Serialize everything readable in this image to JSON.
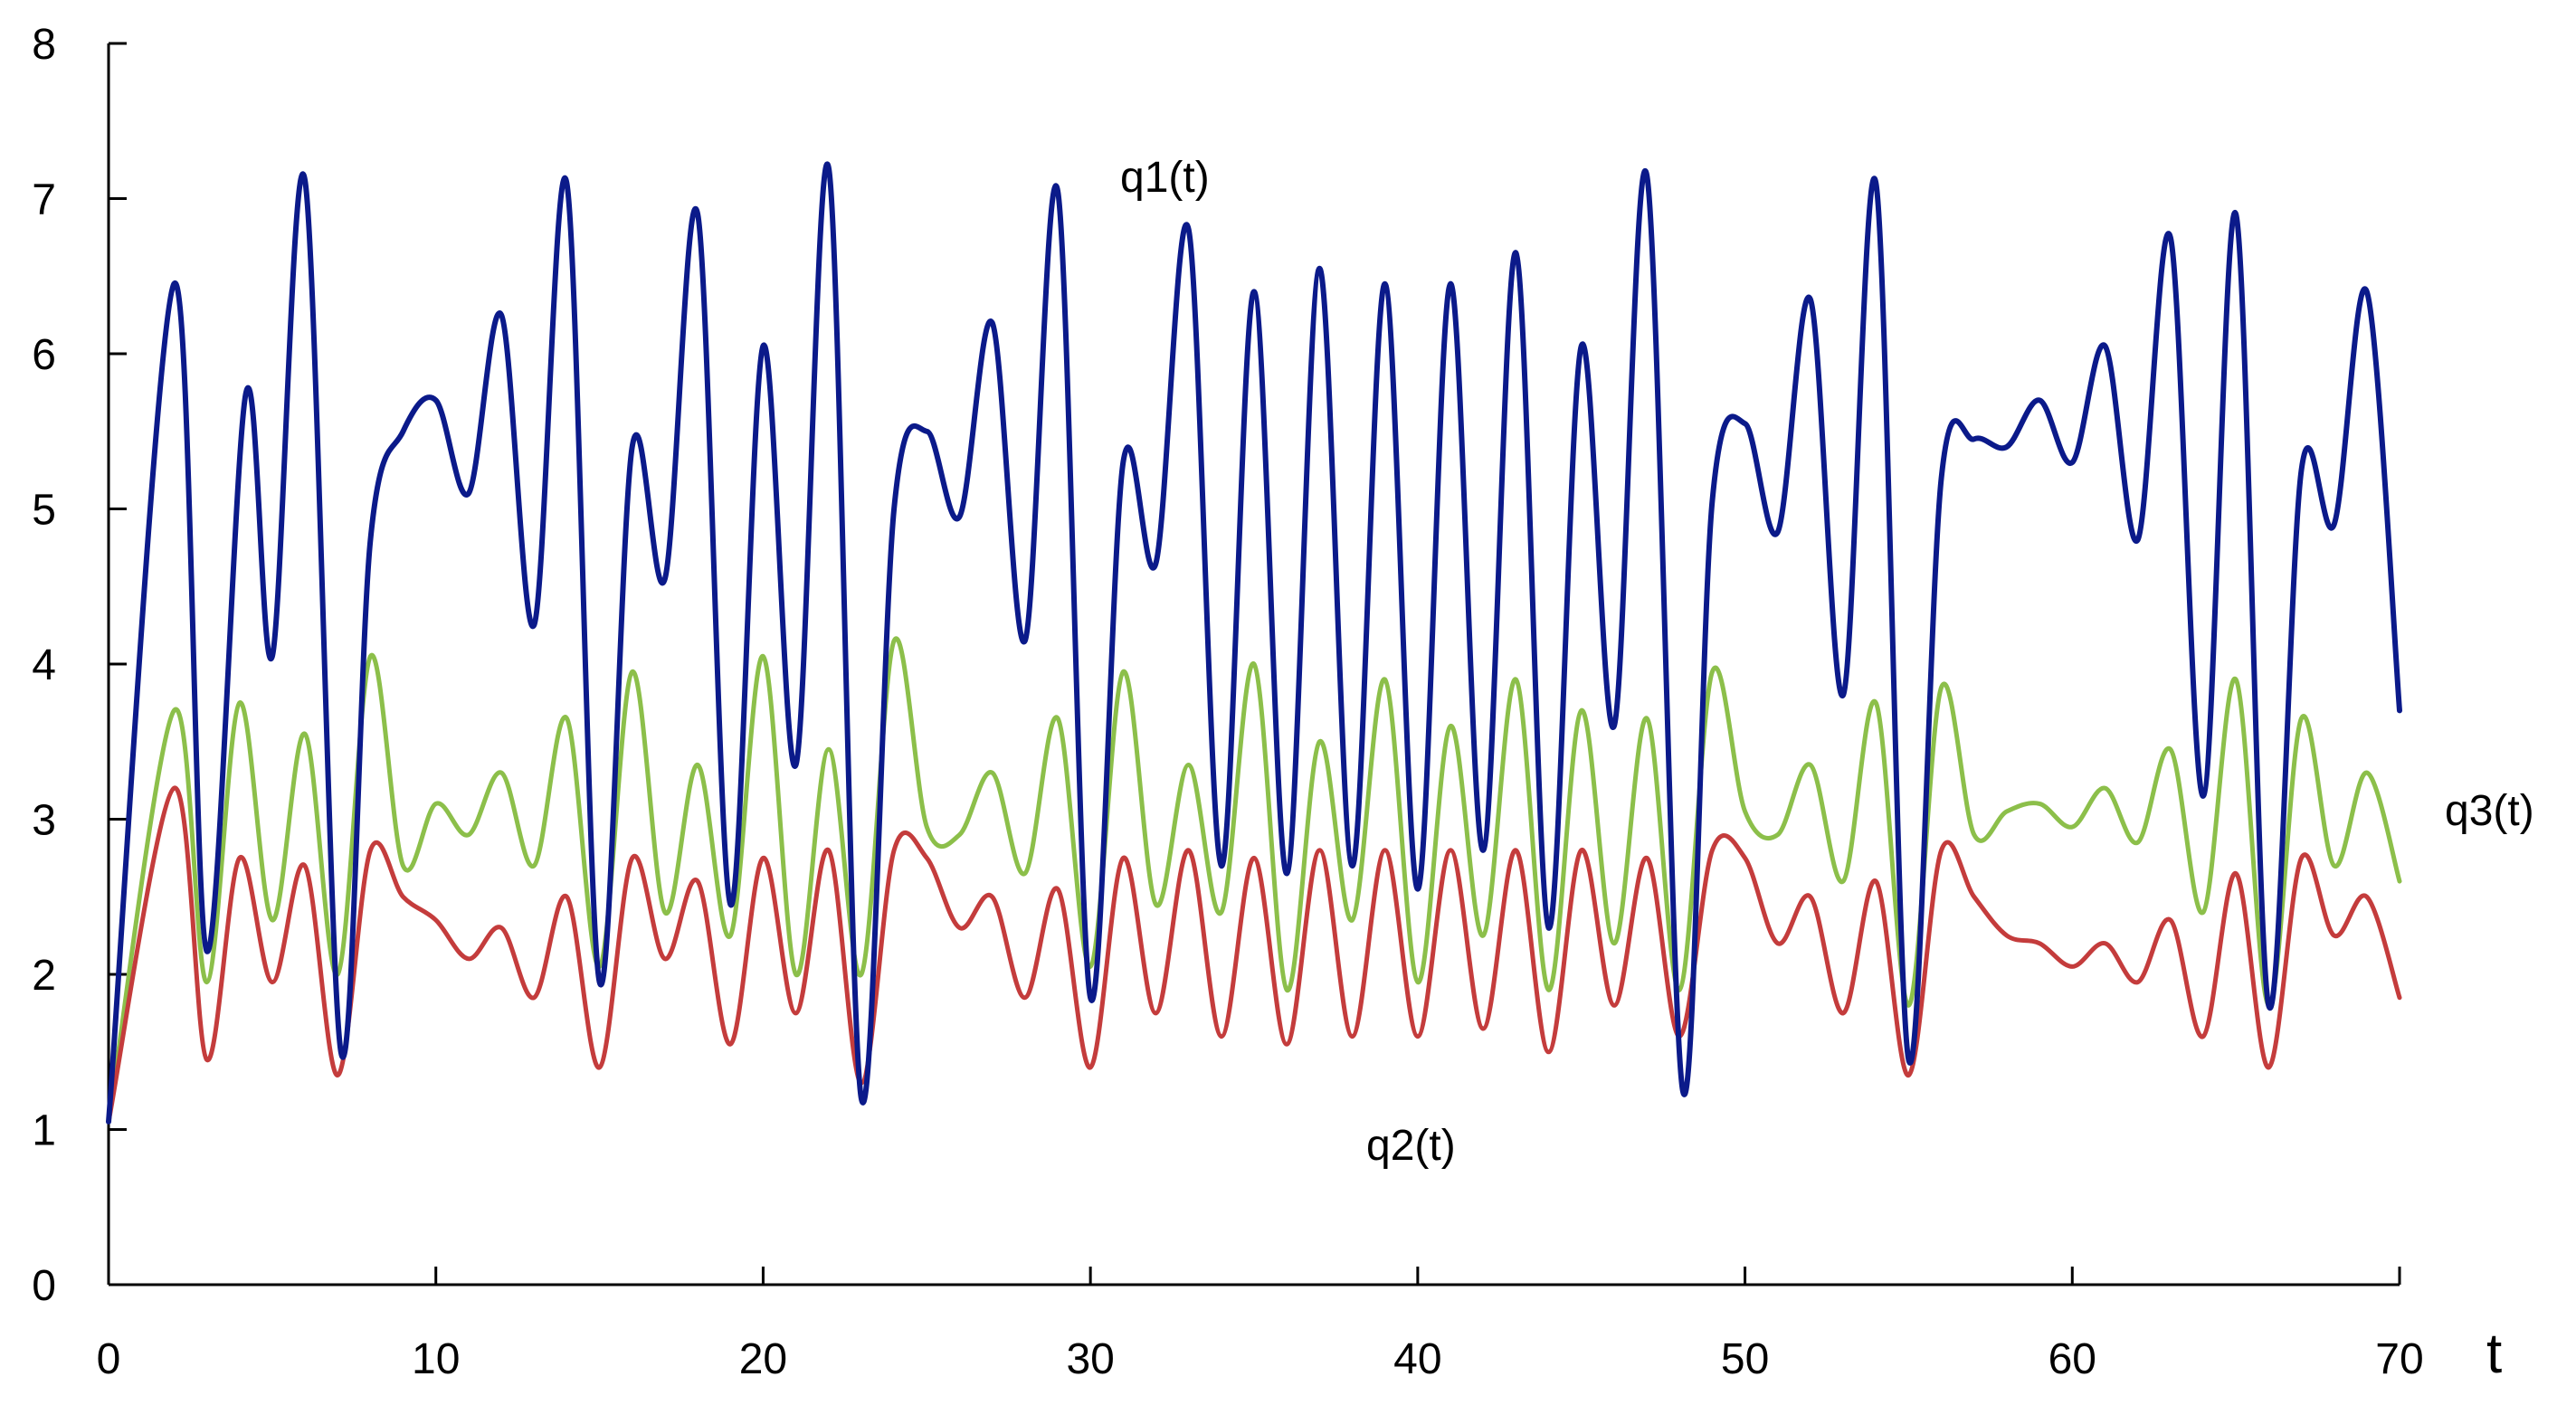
{
  "chart_data": {
    "type": "line",
    "title": "",
    "xlabel": "t",
    "ylabel": "",
    "xlim": [
      0,
      70
    ],
    "ylim": [
      0,
      8
    ],
    "xticks": [
      0,
      10,
      20,
      30,
      40,
      50,
      60,
      70
    ],
    "yticks": [
      0,
      1,
      2,
      3,
      4,
      5,
      6,
      7,
      8
    ],
    "grid": false,
    "legend": "none",
    "series": [
      {
        "name": "q1(t)",
        "color": "#0b1a8a",
        "x": [
          0,
          2,
          3,
          4.2,
          5,
          6,
          7.1,
          8,
          9,
          10,
          11,
          12,
          13,
          14,
          15,
          16,
          17,
          18,
          19,
          20,
          21,
          22,
          23,
          24,
          25,
          26,
          27,
          28,
          29,
          30,
          31,
          32,
          33,
          34,
          35,
          36,
          37,
          38,
          39,
          40,
          41,
          42,
          43,
          44,
          45,
          46,
          47,
          48.1,
          49,
          50,
          51,
          52,
          53,
          54,
          55,
          56,
          57,
          58,
          59,
          60,
          61,
          62,
          63,
          64,
          65,
          66,
          67,
          68,
          69,
          70
        ],
        "y": [
          1.05,
          6.45,
          2.15,
          5.75,
          4.05,
          7.12,
          1.5,
          4.8,
          5.5,
          5.7,
          5.1,
          6.25,
          4.25,
          7.1,
          1.95,
          5.4,
          4.55,
          6.9,
          2.45,
          6.05,
          3.35,
          7.2,
          1.2,
          5.0,
          5.5,
          4.95,
          6.2,
          4.15,
          7.05,
          1.85,
          5.3,
          4.65,
          6.8,
          2.7,
          6.4,
          2.65,
          6.55,
          2.7,
          6.45,
          2.55,
          6.45,
          2.8,
          6.65,
          2.3,
          6.05,
          3.6,
          7.15,
          1.25,
          5.05,
          5.55,
          4.85,
          6.35,
          3.8,
          7.1,
          1.45,
          5.2,
          5.45,
          5.4,
          5.7,
          5.3,
          6.05,
          4.8,
          6.75,
          3.15,
          6.9,
          1.8,
          5.25,
          4.9,
          6.4,
          3.7
        ]
      },
      {
        "name": "q2(t)",
        "color": "#c43c3c",
        "x": [
          0,
          2,
          3,
          4,
          5,
          6,
          7,
          8,
          9,
          10,
          11,
          12,
          13,
          14,
          15,
          16,
          17,
          18,
          19,
          20,
          21,
          22,
          23,
          24,
          25,
          26,
          27,
          28,
          29,
          30,
          31,
          32,
          33,
          34,
          35,
          36,
          37,
          38,
          39,
          40,
          41,
          42,
          43,
          44,
          45,
          46,
          47,
          48,
          49,
          50,
          51,
          52,
          53,
          54,
          55,
          56,
          57,
          58,
          59,
          60,
          61,
          62,
          63,
          64,
          65,
          66,
          67,
          68,
          69,
          70
        ],
        "y": [
          1.05,
          3.2,
          1.45,
          2.75,
          1.95,
          2.7,
          1.35,
          2.8,
          2.5,
          2.35,
          2.1,
          2.3,
          1.85,
          2.5,
          1.4,
          2.75,
          2.1,
          2.6,
          1.55,
          2.75,
          1.75,
          2.8,
          1.3,
          2.8,
          2.75,
          2.3,
          2.5,
          1.85,
          2.55,
          1.4,
          2.75,
          1.75,
          2.8,
          1.6,
          2.75,
          1.55,
          2.8,
          1.6,
          2.8,
          1.6,
          2.8,
          1.65,
          2.8,
          1.5,
          2.8,
          1.8,
          2.75,
          1.6,
          2.8,
          2.75,
          2.2,
          2.5,
          1.75,
          2.6,
          1.35,
          2.8,
          2.5,
          2.25,
          2.2,
          2.05,
          2.2,
          1.95,
          2.35,
          1.6,
          2.65,
          1.4,
          2.75,
          2.25,
          2.5,
          1.85
        ]
      },
      {
        "name": "q3(t)",
        "color": "#8cbf4a",
        "x": [
          0,
          2,
          3,
          4,
          5,
          6,
          7,
          8,
          9,
          10,
          11,
          12,
          13,
          14,
          15,
          16,
          17,
          18,
          19,
          20,
          21,
          22,
          23,
          24,
          25,
          26,
          27,
          28,
          29,
          30,
          31,
          32,
          33,
          34,
          35,
          36,
          37,
          38,
          39,
          40,
          41,
          42,
          43,
          44,
          45,
          46,
          47,
          48,
          49,
          50,
          51,
          52,
          53,
          54,
          55,
          56,
          57,
          58,
          59,
          60,
          61,
          62,
          63,
          64,
          65,
          66,
          67,
          68,
          69,
          70
        ],
        "y": [
          1.05,
          3.7,
          1.95,
          3.75,
          2.35,
          3.55,
          2.0,
          4.05,
          2.7,
          3.1,
          2.9,
          3.3,
          2.7,
          3.65,
          2.05,
          3.95,
          2.4,
          3.35,
          2.25,
          4.05,
          2.0,
          3.45,
          2.0,
          4.15,
          2.95,
          2.9,
          3.3,
          2.65,
          3.65,
          2.05,
          3.95,
          2.45,
          3.35,
          2.4,
          4.0,
          1.9,
          3.5,
          2.35,
          3.9,
          1.95,
          3.6,
          2.25,
          3.9,
          1.9,
          3.7,
          2.2,
          3.65,
          1.9,
          3.95,
          3.05,
          2.9,
          3.35,
          2.6,
          3.75,
          1.8,
          3.85,
          2.9,
          3.05,
          3.1,
          2.95,
          3.2,
          2.85,
          3.45,
          2.4,
          3.9,
          1.8,
          3.65,
          2.7,
          3.3,
          2.6
        ]
      }
    ]
  }
}
